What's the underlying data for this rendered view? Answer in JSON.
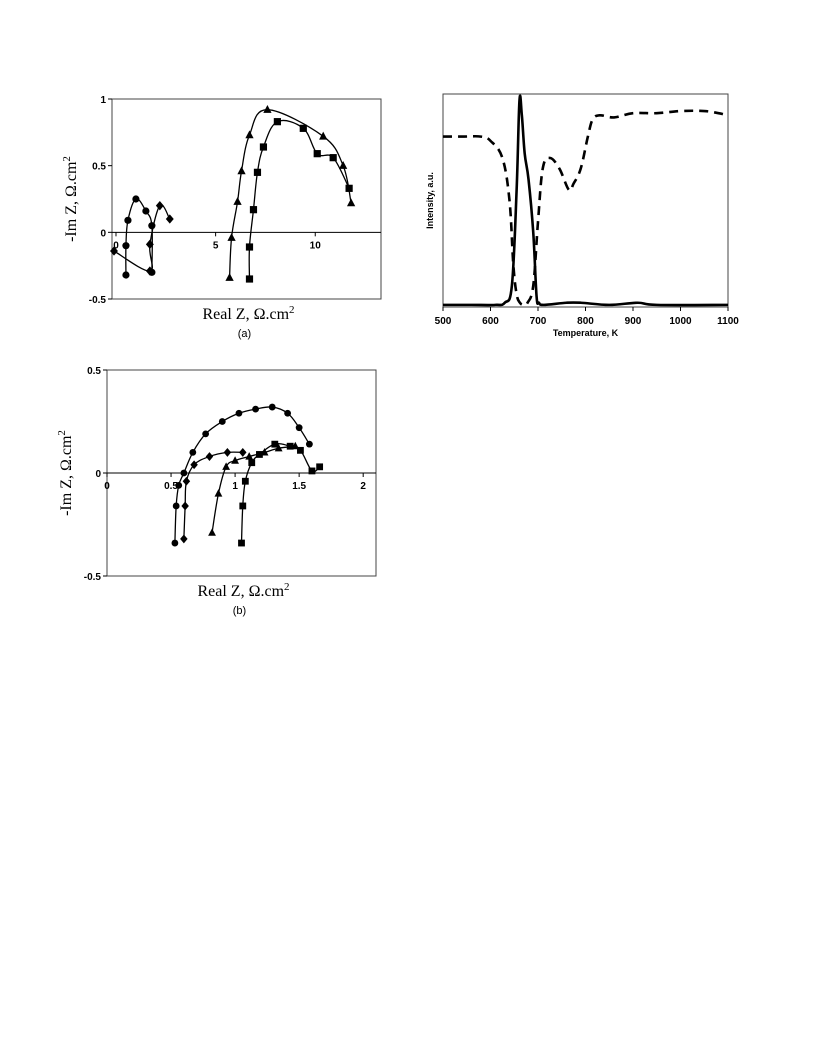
{
  "chart_data": [
    {
      "id": "a",
      "type": "scatter",
      "caption": "(a)",
      "xlabel": "Real Z, Ω.cm",
      "xlabel_sup": "2",
      "ylabel": "-Im Z, Ω.cm",
      "ylabel_sup": "2",
      "xlim": [
        -0.2,
        13.3
      ],
      "ylim": [
        -0.5,
        1
      ],
      "x_ticks": [
        0,
        5,
        10
      ],
      "y_ticks": [
        1,
        0.5,
        0,
        -0.5
      ],
      "grid": false,
      "series": [
        {
          "marker": "circle",
          "x": [
            0.5,
            0.5,
            0.6,
            1.0,
            1.5,
            1.8,
            1.8
          ],
          "y": [
            -0.32,
            -0.1,
            0.09,
            0.25,
            0.16,
            0.05,
            -0.3
          ]
        },
        {
          "marker": "diamond",
          "x": [
            -0.1,
            1.7,
            1.7,
            2.2,
            2.7
          ],
          "y": [
            -0.14,
            -0.29,
            -0.09,
            0.2,
            0.1
          ]
        },
        {
          "marker": "triangle",
          "x": [
            5.7,
            5.8,
            6.1,
            6.3,
            6.7,
            7.6,
            10.4,
            11.4,
            11.8
          ],
          "y": [
            -0.34,
            -0.04,
            0.23,
            0.46,
            0.73,
            0.92,
            0.72,
            0.5,
            0.22
          ]
        },
        {
          "marker": "square",
          "x": [
            6.7,
            6.7,
            6.9,
            7.1,
            7.4,
            8.1,
            9.4,
            10.1,
            10.9,
            11.7
          ],
          "y": [
            -0.35,
            -0.11,
            0.17,
            0.45,
            0.64,
            0.83,
            0.78,
            0.59,
            0.56,
            0.33
          ]
        }
      ]
    },
    {
      "id": "tpr",
      "type": "line",
      "xlabel": "Temperature, K",
      "ylabel": "Intensity, a.u.",
      "xlim": [
        500,
        1100
      ],
      "ylim": [
        0,
        1
      ],
      "x_ticks": [
        500,
        600,
        700,
        800,
        900,
        1000,
        1100
      ],
      "grid": false,
      "series": [
        {
          "style": "solid",
          "x": [
            500,
            560,
            610,
            630,
            645,
            655,
            661,
            666,
            672,
            680,
            690,
            697,
            702,
            712,
            760,
            790,
            850,
            910,
            950,
            1100
          ],
          "y": [
            0.01,
            0.01,
            0.01,
            0.02,
            0.1,
            0.55,
            0.97,
            0.9,
            0.72,
            0.6,
            0.35,
            0.05,
            0.02,
            0.01,
            0.02,
            0.02,
            0.01,
            0.02,
            0.01,
            0.01
          ]
        },
        {
          "style": "dashed",
          "x": [
            500,
            540,
            580,
            600,
            625,
            640,
            648,
            655,
            662,
            670,
            678,
            690,
            700,
            710,
            725,
            745,
            765,
            775,
            790,
            805,
            815,
            830,
            860,
            900,
            950,
            1000,
            1050,
            1080,
            1100
          ],
          "y": [
            0.8,
            0.8,
            0.8,
            0.78,
            0.7,
            0.5,
            0.2,
            0.06,
            0.02,
            0.01,
            0.02,
            0.1,
            0.4,
            0.65,
            0.7,
            0.65,
            0.55,
            0.58,
            0.65,
            0.8,
            0.88,
            0.9,
            0.89,
            0.91,
            0.91,
            0.92,
            0.92,
            0.91,
            0.9
          ]
        }
      ]
    },
    {
      "id": "b",
      "type": "scatter",
      "caption": "(b)",
      "xlabel": "Real Z, Ω.cm",
      "xlabel_sup": "2",
      "ylabel": "-Im Z, Ω.cm",
      "ylabel_sup": "2",
      "xlim": [
        0,
        2.1
      ],
      "ylim": [
        -0.5,
        0.5
      ],
      "x_ticks": [
        0,
        0.5,
        1,
        1.5,
        2
      ],
      "y_ticks": [
        0.5,
        0,
        -0.5
      ],
      "grid": false,
      "series": [
        {
          "marker": "circle",
          "x": [
            0.53,
            0.54,
            0.56,
            0.6,
            0.67,
            0.77,
            0.9,
            1.03,
            1.16,
            1.29,
            1.41,
            1.5,
            1.58
          ],
          "y": [
            -0.34,
            -0.16,
            -0.06,
            0.0,
            0.1,
            0.19,
            0.25,
            0.29,
            0.31,
            0.32,
            0.29,
            0.22,
            0.14
          ]
        },
        {
          "marker": "diamond",
          "x": [
            0.6,
            0.61,
            0.62,
            0.68,
            0.8,
            0.94,
            1.06
          ],
          "y": [
            -0.32,
            -0.16,
            -0.04,
            0.04,
            0.08,
            0.1,
            0.1
          ]
        },
        {
          "marker": "triangle",
          "x": [
            0.82,
            0.87,
            0.93,
            1.0,
            1.11,
            1.23,
            1.34,
            1.47
          ],
          "y": [
            -0.29,
            -0.1,
            0.03,
            0.06,
            0.08,
            0.1,
            0.12,
            0.13
          ]
        },
        {
          "marker": "square",
          "x": [
            1.05,
            1.06,
            1.08,
            1.13,
            1.19,
            1.31,
            1.43,
            1.51,
            1.6,
            1.66
          ],
          "y": [
            -0.34,
            -0.16,
            -0.04,
            0.05,
            0.09,
            0.14,
            0.13,
            0.11,
            0.01,
            0.03
          ]
        }
      ]
    }
  ]
}
